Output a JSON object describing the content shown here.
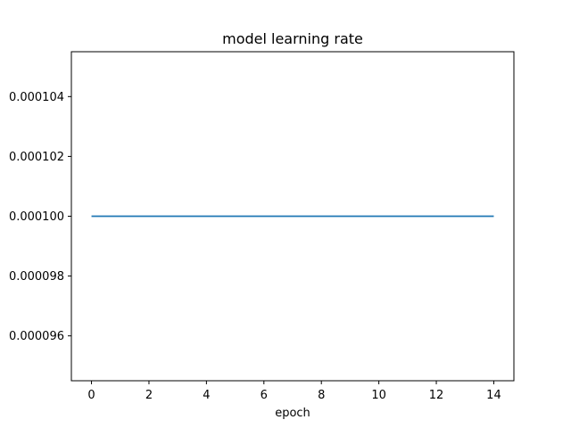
{
  "chart_data": {
    "type": "line",
    "title": "model learning rate",
    "xlabel": "epoch",
    "ylabel": "",
    "x": [
      0,
      1,
      2,
      3,
      4,
      5,
      6,
      7,
      8,
      9,
      10,
      11,
      12,
      13,
      14
    ],
    "series": [
      {
        "values": [
          0.0001,
          0.0001,
          0.0001,
          0.0001,
          0.0001,
          0.0001,
          0.0001,
          0.0001,
          0.0001,
          0.0001,
          0.0001,
          0.0001,
          0.0001,
          0.0001,
          0.0001
        ],
        "color": "#1f77b4"
      }
    ],
    "xlim": [
      -0.7,
      14.7
    ],
    "ylim": [
      9.45e-05,
      0.0001055
    ],
    "xticks": [
      0,
      2,
      4,
      6,
      8,
      10,
      12,
      14
    ],
    "xtick_labels": [
      "0",
      "2",
      "4",
      "6",
      "8",
      "10",
      "12",
      "14"
    ],
    "yticks": [
      9.6e-05,
      9.8e-05,
      0.0001,
      0.000102,
      0.000104
    ],
    "ytick_labels": [
      "0.000096",
      "0.000098",
      "0.000100",
      "0.000102",
      "0.000104"
    ],
    "grid": false,
    "legend": false
  }
}
